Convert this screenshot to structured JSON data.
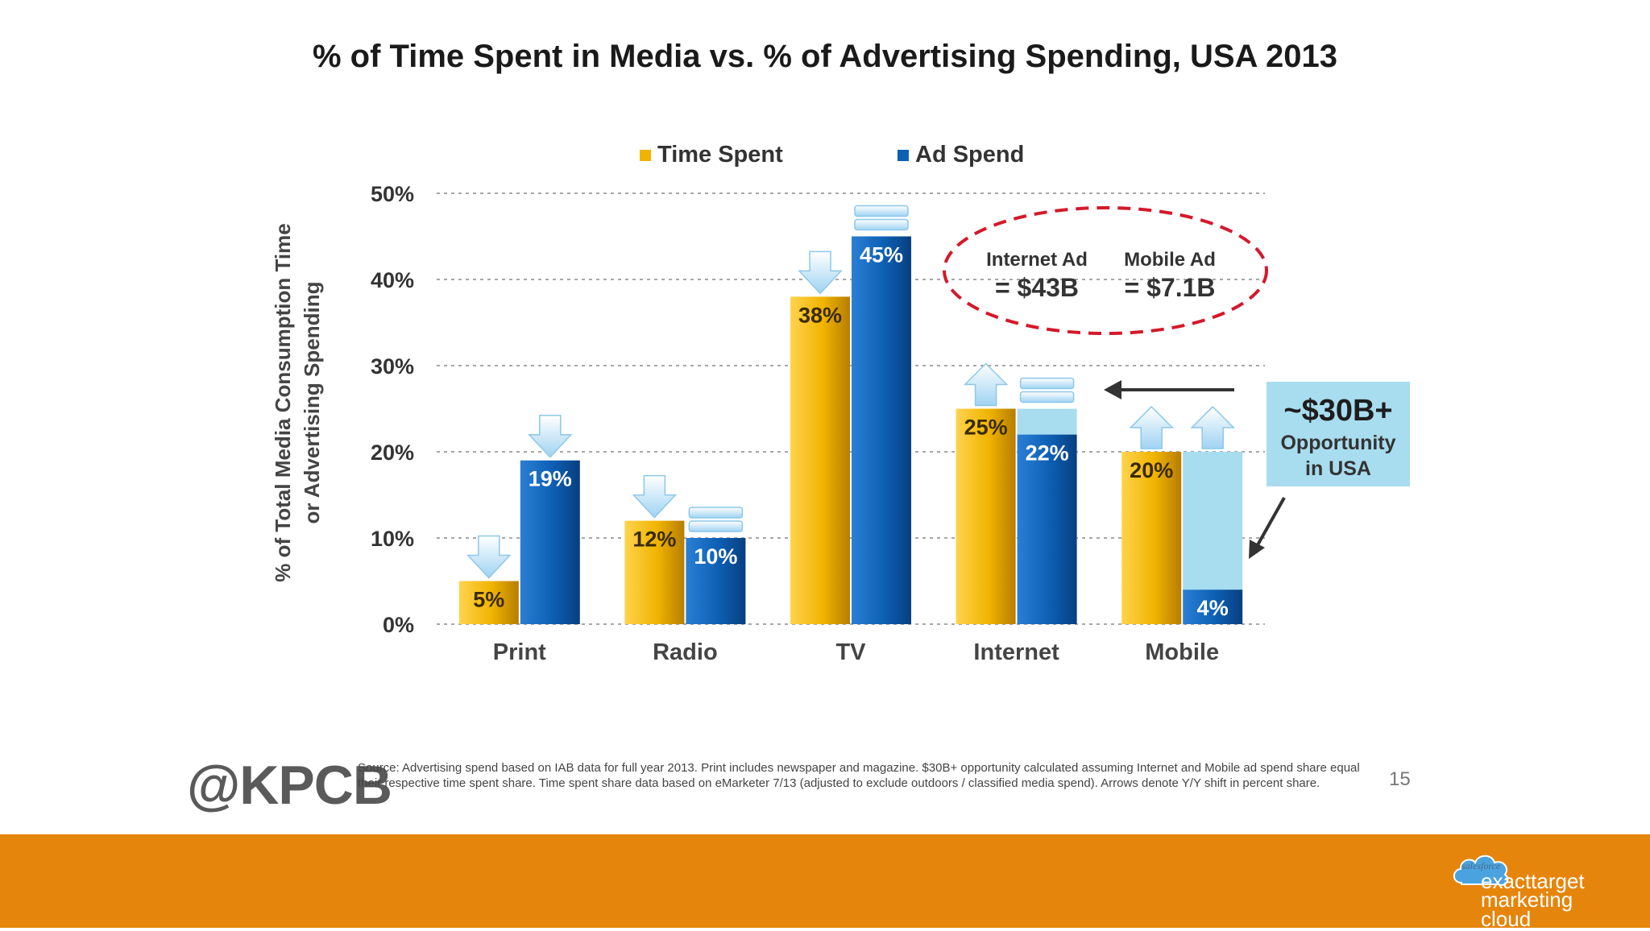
{
  "slide": {
    "title": "% of Time Spent in Media vs. % of Advertising Spending, USA 2013",
    "page_number": "15"
  },
  "chart_data": {
    "type": "bar",
    "title": "% of Time Spent in Media vs. % of Advertising Spending, USA 2013",
    "xlabel": "",
    "ylabel": "% of Total Media Consumption Time or Advertising Spending",
    "ylabel_lines": [
      "% of Total Media Consumption Time",
      "or Advertising Spending"
    ],
    "categories": [
      "Print",
      "Radio",
      "TV",
      "Internet",
      "Mobile"
    ],
    "series": [
      {
        "name": "Time Spent",
        "color": "#f0b400",
        "values": [
          5,
          12,
          38,
          25,
          20
        ],
        "labels": [
          "5%",
          "12%",
          "38%",
          "25%",
          "20%"
        ],
        "yoy_shift": [
          "down",
          "down",
          "down",
          "up",
          "up"
        ]
      },
      {
        "name": "Ad Spend",
        "color": "#0d5fb3",
        "values": [
          19,
          10,
          45,
          22,
          4
        ],
        "labels": [
          "19%",
          "10%",
          "45%",
          "22%",
          "4%"
        ],
        "yoy_shift": [
          "down",
          "flat",
          "flat",
          "flat",
          "up"
        ]
      }
    ],
    "opportunity_gap": [
      {
        "category": "Internet",
        "from": 22,
        "to": 25,
        "color": "#a8dcef"
      },
      {
        "category": "Mobile",
        "from": 4,
        "to": 20,
        "color": "#a8dcef"
      }
    ],
    "ylim": [
      0,
      50
    ],
    "yticks": [
      0,
      10,
      20,
      30,
      40,
      50
    ],
    "ytick_labels": [
      "0%",
      "10%",
      "20%",
      "30%",
      "40%",
      "50%"
    ],
    "grid": true,
    "legend_position": "top",
    "annotations": {
      "internet_ad_title": "Internet Ad",
      "internet_ad_value": "= $43B",
      "mobile_ad_title": "Mobile Ad",
      "mobile_ad_value": "= $7.1B",
      "opportunity_amount": "~$30B+",
      "opportunity_line1": "Opportunity",
      "opportunity_line2": "in USA"
    }
  },
  "footer": {
    "logo_text": "@KPCB",
    "source": "Source: Advertising spend based on IAB data for full year 2013. Print includes newspaper and magazine. $30B+ opportunity calculated assuming Internet and Mobile ad spend share equal their respective time spent share. Time spent share data based on eMarketer 7/13 (adjusted to exclude outdoors / classified media spend). Arrows denote Y/Y shift in percent share."
  },
  "branding": {
    "cloud_text": "salesforce",
    "brand_line1": "exacttarget",
    "brand_line2": "marketing cloud",
    "band_color": "#e6850b"
  }
}
